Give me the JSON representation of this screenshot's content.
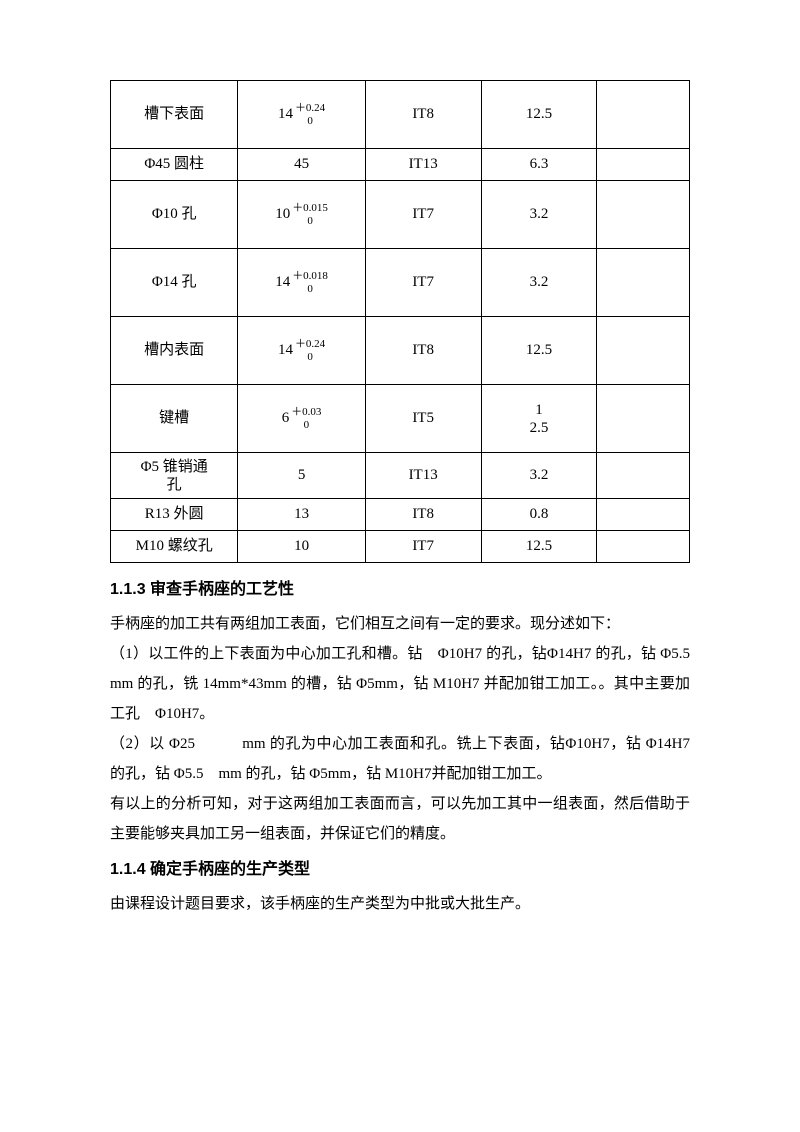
{
  "table": {
    "rows": [
      {
        "name": "槽下表面",
        "dim_base": "14",
        "dim_upper": "＋0.24",
        "dim_lower": "0",
        "it": "IT8",
        "ra": "12.5",
        "note": "",
        "height": "tall",
        "has_tol": true
      },
      {
        "name": "Φ45 圆柱",
        "dim_base": "45",
        "it": "IT13",
        "ra": "6.3",
        "note": "",
        "height": "med",
        "has_tol": false
      },
      {
        "name": "Φ10 孔",
        "dim_base": "10",
        "dim_upper": "＋0.015",
        "dim_lower": "0",
        "it": "IT7",
        "ra": "3.2",
        "note": "",
        "height": "tall",
        "has_tol": true
      },
      {
        "name": "Φ14 孔",
        "dim_base": "14",
        "dim_upper": "＋0.018",
        "dim_lower": "0",
        "it": "IT7",
        "ra": "3.2",
        "note": "",
        "height": "tall",
        "has_tol": true
      },
      {
        "name": "槽内表面",
        "dim_base": "14",
        "dim_upper": "＋0.24",
        "dim_lower": "0",
        "it": "IT8",
        "ra": "12.5",
        "note": "",
        "height": "tall",
        "has_tol": true
      },
      {
        "name": "键槽",
        "dim_base": "6",
        "dim_upper": "＋0.03",
        "dim_lower": "0",
        "it": "IT5",
        "ra_line1": "1",
        "ra_line2": "2.5",
        "note": "",
        "height": "tall",
        "has_tol": true,
        "ra_stacked": true
      },
      {
        "name_line1": "Φ5 锥销通",
        "name_line2": "孔",
        "dim_base": "5",
        "it": "IT13",
        "ra": "3.2",
        "note": "",
        "height": "twoline",
        "has_tol": false,
        "name_stacked": true
      },
      {
        "name": "R13 外圆",
        "dim_base": "13",
        "it": "IT8",
        "ra": "0.8",
        "note": "",
        "height": "med",
        "has_tol": false
      },
      {
        "name": "M10 螺纹孔",
        "dim_base": "10",
        "it": "IT7",
        "ra": "12.5",
        "note": "",
        "height": "med",
        "has_tol": false
      }
    ]
  },
  "section1": {
    "heading": "1.1.3 审查手柄座的工艺性",
    "p1": "手柄座的加工共有两组加工表面，它们相互之间有一定的要求。现分述如下：",
    "p2": "（1）以工件的上下表面为中心加工孔和槽。钻　Φ10H7 的孔，钻Φ14H7 的孔，钻 Φ5.5　mm 的孔，铣 14mm*43mm 的槽，钻 Φ5mm，钻 M10H7 并配加钳工加工。。其中主要加工孔　Φ10H7。",
    "p3": "（2）以 Φ25　　　mm 的孔为中心加工表面和孔。铣上下表面，钻Φ10H7，钻 Φ14H7 的孔，钻 Φ5.5　mm 的孔，钻 Φ5mm，钻 M10H7并配加钳工加工。",
    "p4": "有以上的分析可知，对于这两组加工表面而言，可以先加工其中一组表面，然后借助于主要能够夹具加工另一组表面，并保证它们的精度。"
  },
  "section2": {
    "heading": "1.1.4 确定手柄座的生产类型",
    "p1": "由课程设计题目要求，该手柄座的生产类型为中批或大批生产。"
  }
}
